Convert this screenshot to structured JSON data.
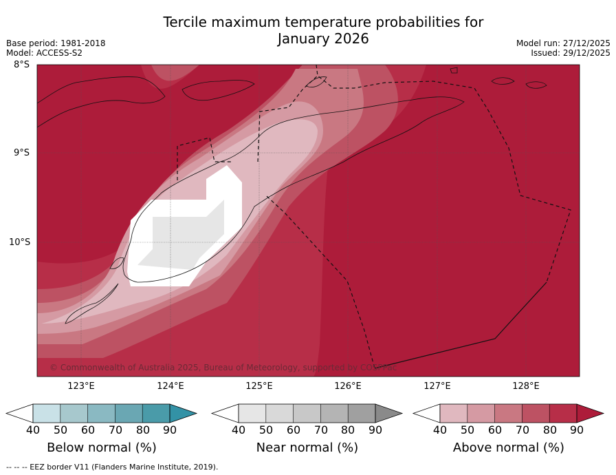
{
  "header": {
    "title_line1": "Tercile maximum temperature probabilities for",
    "title_line2": "January 2026",
    "base_period": "Base period: 1981-2018",
    "model": "Model: ACCESS-S2",
    "model_run": "Model run: 27/12/2025",
    "issued": "Issued: 29/12/2025"
  },
  "map": {
    "lat_labels": [
      "8°S",
      "9°S",
      "10°S"
    ],
    "lon_labels": [
      "123°E",
      "124°E",
      "125°E",
      "126°E",
      "127°E",
      "128°E"
    ],
    "copyright": "© Commonwealth of Australia 2025, Bureau of Meteorology, supported by COSPPac"
  },
  "colorbars": [
    {
      "label": "Below normal (%)",
      "ticks": [
        "40",
        "50",
        "60",
        "70",
        "80",
        "90"
      ],
      "colors": [
        "#c9e1e7",
        "#a7c8cd",
        "#8ab9c2",
        "#6aa7b3",
        "#4a9ba9",
        "#3392a6"
      ]
    },
    {
      "label": "Near normal (%)",
      "ticks": [
        "40",
        "50",
        "60",
        "70",
        "80",
        "90"
      ],
      "colors": [
        "#e6e6e6",
        "#d9d9d9",
        "#c8c8c8",
        "#b4b4b4",
        "#a0a0a0",
        "#8a8a8a"
      ]
    },
    {
      "label": "Above normal (%)",
      "ticks": [
        "40",
        "50",
        "60",
        "70",
        "80",
        "90"
      ],
      "colors": [
        "#e0b8bf",
        "#d59aa3",
        "#c97882",
        "#bd5263",
        "#b72e48",
        "#ad1c3a"
      ]
    }
  ],
  "footnote": "--  --  -- EEZ border V11 (Flanders Marine Institute, 2019)."
}
